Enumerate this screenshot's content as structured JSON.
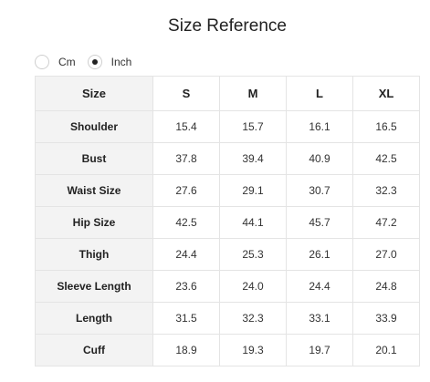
{
  "title": "Size Reference",
  "units": {
    "options": [
      {
        "label": "Cm",
        "selected": false
      },
      {
        "label": "Inch",
        "selected": true
      }
    ]
  },
  "table": {
    "corner_label": "Size",
    "columns": [
      "S",
      "M",
      "L",
      "XL"
    ],
    "rows": [
      {
        "label": "Shoulder",
        "values": [
          "15.4",
          "15.7",
          "16.1",
          "16.5"
        ]
      },
      {
        "label": "Bust",
        "values": [
          "37.8",
          "39.4",
          "40.9",
          "42.5"
        ]
      },
      {
        "label": "Waist Size",
        "values": [
          "27.6",
          "29.1",
          "30.7",
          "32.3"
        ]
      },
      {
        "label": "Hip Size",
        "values": [
          "42.5",
          "44.1",
          "45.7",
          "47.2"
        ]
      },
      {
        "label": "Thigh",
        "values": [
          "24.4",
          "25.3",
          "26.1",
          "27.0"
        ]
      },
      {
        "label": "Sleeve Length",
        "values": [
          "23.6",
          "24.0",
          "24.4",
          "24.8"
        ]
      },
      {
        "label": "Length",
        "values": [
          "31.5",
          "32.3",
          "33.1",
          "33.9"
        ]
      },
      {
        "label": "Cuff",
        "values": [
          "18.9",
          "19.3",
          "19.7",
          "20.1"
        ]
      }
    ]
  }
}
